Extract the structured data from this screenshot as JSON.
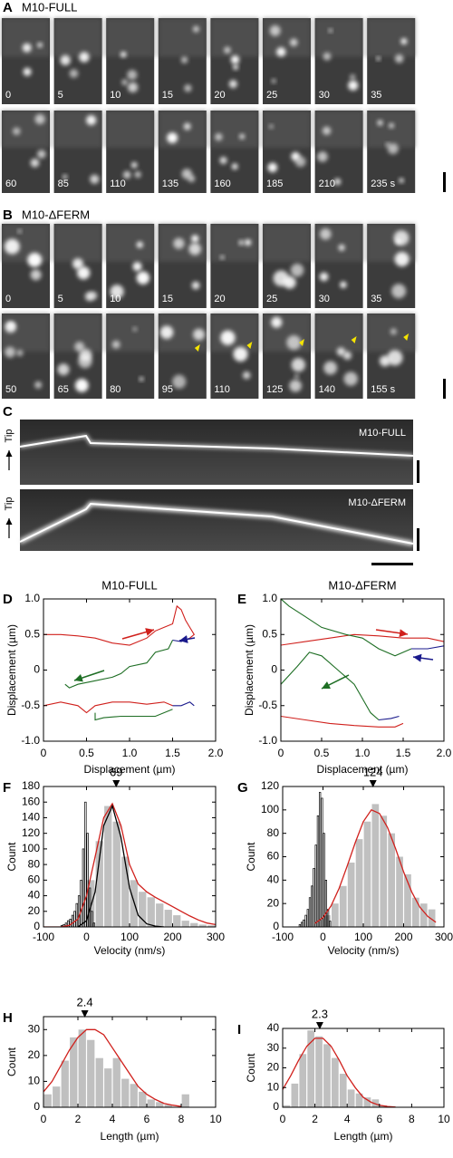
{
  "panel_a": {
    "label": "A",
    "title": "M10-FULL",
    "rows": [
      [
        "0",
        "5",
        "10",
        "15",
        "20",
        "25",
        "30",
        "35"
      ],
      [
        "60",
        "85",
        "110",
        "135",
        "160",
        "185",
        "210",
        "235 s"
      ]
    ]
  },
  "panel_b": {
    "label": "B",
    "title": "M10-ΔFERM",
    "rows": [
      [
        "0",
        "5",
        "10",
        "15",
        "20",
        "25",
        "30",
        "35"
      ],
      [
        "50",
        "65",
        "80",
        "95",
        "110",
        "125",
        "140",
        "155 s"
      ]
    ]
  },
  "panel_c": {
    "label": "C",
    "kymographs": [
      {
        "axis_label": "Tip",
        "title": "M10-FULL"
      },
      {
        "axis_label": "Tip",
        "title": "M10-ΔFERM"
      }
    ]
  },
  "chart_data": [
    {
      "type": "line",
      "label": "D",
      "title": "M10-FULL",
      "xlabel": "Displacement (µm)",
      "ylabel": "Displacement (µm)",
      "xlim": [
        0,
        2
      ],
      "ylim": [
        -1,
        1
      ],
      "xticks": [
        0,
        0.5,
        {
          "value": 1,
          "label": "1.0"
        },
        1.5,
        {
          "value": 2,
          "label": "2.0"
        }
      ],
      "yticks": [
        {
          "value": -1,
          "label": "-1.0"
        },
        -0.5,
        0,
        0.5,
        {
          "value": 1,
          "label": "1.0"
        }
      ],
      "series": [
        {
          "color": "#d0201c",
          "x": [
            0,
            0.2,
            0.4,
            0.6,
            0.8,
            1.0,
            1.1,
            1.2,
            1.3,
            1.4,
            1.5,
            1.55,
            1.6,
            1.65,
            1.7,
            1.75,
            1.7
          ],
          "values": [
            0.5,
            0.5,
            0.48,
            0.45,
            0.38,
            0.35,
            0.4,
            0.45,
            0.55,
            0.6,
            0.65,
            0.9,
            0.85,
            0.7,
            0.6,
            0.5,
            0.45
          ]
        },
        {
          "color": "#1a1a8c",
          "x": [
            1.7,
            1.6,
            1.5
          ],
          "values": [
            0.45,
            0.4,
            0.42
          ]
        },
        {
          "color": "#1e6e24",
          "x": [
            1.5,
            1.45,
            1.3,
            1.2,
            1.0,
            0.9,
            0.8,
            0.6,
            0.4,
            0.3,
            0.25
          ],
          "values": [
            0.42,
            0.3,
            0.25,
            0.1,
            0.05,
            -0.05,
            -0.1,
            -0.15,
            -0.2,
            -0.25,
            -0.2
          ]
        },
        {
          "color": "#d0201c",
          "x": [
            0,
            0.2,
            0.4,
            0.5,
            0.6,
            0.8,
            1.0,
            1.2,
            1.4,
            1.5
          ],
          "values": [
            -0.5,
            -0.45,
            -0.5,
            -0.6,
            -0.5,
            -0.45,
            -0.45,
            -0.48,
            -0.45,
            -0.5
          ]
        },
        {
          "color": "#1a1a8c",
          "x": [
            1.5,
            1.6,
            1.7,
            1.75
          ],
          "values": [
            -0.5,
            -0.5,
            -0.45,
            -0.5
          ]
        },
        {
          "color": "#1e6e24",
          "x": [
            1.5,
            1.3,
            1.1,
            0.9,
            0.7,
            0.6,
            0.6
          ],
          "values": [
            -0.55,
            -0.65,
            -0.65,
            -0.65,
            -0.67,
            -0.7,
            -0.6
          ]
        }
      ]
    },
    {
      "type": "line",
      "label": "E",
      "title": "M10-ΔFERM",
      "xlabel": "Displacement (µm)",
      "ylabel": "Displacement (µm)",
      "xlim": [
        0,
        2
      ],
      "ylim": [
        -1,
        1
      ],
      "xticks": [
        0,
        0.5,
        {
          "value": 1,
          "label": "1.0"
        },
        1.5,
        {
          "value": 2,
          "label": "2.0"
        }
      ],
      "yticks": [
        {
          "value": -1,
          "label": "-1.0"
        },
        -0.5,
        0,
        0.5,
        {
          "value": 1,
          "label": "1.0"
        }
      ],
      "series": [
        {
          "color": "#d0201c",
          "x": [
            0,
            0.3,
            0.6,
            0.9,
            1.2,
            1.5,
            1.8,
            2.0,
            2.05
          ],
          "values": [
            0.35,
            0.4,
            0.45,
            0.5,
            0.48,
            0.45,
            0.45,
            0.4,
            0.35
          ]
        },
        {
          "color": "#1a1a8c",
          "x": [
            2.05,
            1.8,
            1.6
          ],
          "values": [
            0.35,
            0.3,
            0.3
          ]
        },
        {
          "color": "#1e6e24",
          "x": [
            1.6,
            1.4,
            1.2,
            1.0,
            0.8,
            0.5,
            0.3,
            0.1,
            0
          ],
          "values": [
            0.3,
            0.2,
            0.3,
            0.45,
            0.5,
            0.6,
            0.75,
            0.9,
            1.0
          ]
        },
        {
          "color": "#1e6e24",
          "x": [
            0,
            0.2,
            0.35,
            0.5,
            0.7,
            0.9,
            1.0,
            1.1,
            1.2
          ],
          "values": [
            -0.2,
            0.05,
            0.25,
            0.2,
            0.0,
            -0.2,
            -0.4,
            -0.6,
            -0.7
          ]
        },
        {
          "color": "#1a1a8c",
          "x": [
            1.2,
            1.35,
            1.45
          ],
          "values": [
            -0.7,
            -0.68,
            -0.65
          ]
        },
        {
          "color": "#d0201c",
          "x": [
            0,
            0.3,
            0.6,
            0.9,
            1.2,
            1.4,
            1.5
          ],
          "values": [
            -0.65,
            -0.7,
            -0.75,
            -0.78,
            -0.8,
            -0.8,
            -0.75
          ]
        }
      ]
    },
    {
      "type": "histogram",
      "label": "F",
      "xlabel": "Velocity (nm/s)",
      "ylabel": "Count",
      "xlim": [
        -100,
        300
      ],
      "ylim": [
        0,
        180
      ],
      "xticks": [
        -100,
        0,
        100,
        200,
        300
      ],
      "yticks": [
        0,
        20,
        40,
        60,
        80,
        100,
        120,
        140,
        160,
        180
      ],
      "histograms": [
        {
          "color": "#c0c0c0",
          "bins": [
            0,
            20,
            40,
            60,
            80,
            100,
            120,
            140,
            160,
            180,
            200,
            220,
            240,
            260,
            280,
            300
          ],
          "counts": [
            60,
            110,
            155,
            135,
            90,
            60,
            45,
            38,
            30,
            22,
            15,
            8,
            5,
            3,
            2
          ]
        },
        {
          "color": "#000000",
          "bins": [
            -60,
            -55,
            -50,
            -45,
            -40,
            -35,
            -30,
            -25,
            -20,
            -15,
            -10,
            -5,
            0,
            5,
            10,
            15,
            20
          ],
          "counts": [
            2,
            3,
            5,
            8,
            10,
            15,
            20,
            30,
            40,
            60,
            100,
            160,
            120,
            50,
            20,
            5
          ]
        }
      ],
      "curves": [
        {
          "color": "#d0201c",
          "x": [
            -100,
            -80,
            -60,
            -40,
            -20,
            0,
            20,
            40,
            60,
            80,
            100,
            120,
            140,
            160,
            180,
            200,
            220,
            240,
            260,
            280,
            300
          ],
          "values": [
            0,
            0,
            0,
            2,
            10,
            40,
            90,
            140,
            158,
            130,
            80,
            55,
            45,
            38,
            32,
            26,
            20,
            14,
            9,
            5,
            3
          ]
        },
        {
          "color": "#000000",
          "x": [
            -20,
            0,
            20,
            40,
            60,
            80,
            100,
            120,
            140,
            160,
            180
          ],
          "values": [
            0,
            8,
            45,
            130,
            155,
            115,
            50,
            15,
            4,
            1,
            0
          ]
        }
      ],
      "annotations": [
        {
          "text": "69",
          "x": 69
        }
      ]
    },
    {
      "type": "histogram",
      "label": "G",
      "xlabel": "Velocity (nm/s)",
      "ylabel": "Count",
      "xlim": [
        -100,
        300
      ],
      "ylim": [
        0,
        120
      ],
      "xticks": [
        -100,
        0,
        100,
        200,
        300
      ],
      "yticks": [
        0,
        20,
        40,
        60,
        80,
        100,
        120
      ],
      "histograms": [
        {
          "color": "#c0c0c0",
          "bins": [
            0,
            20,
            40,
            60,
            80,
            100,
            120,
            140,
            160,
            180,
            200,
            220,
            240,
            260,
            280
          ],
          "counts": [
            10,
            20,
            35,
            55,
            75,
            90,
            105,
            95,
            80,
            60,
            45,
            25,
            20,
            15
          ]
        },
        {
          "color": "#000000",
          "bins": [
            -60,
            -55,
            -50,
            -45,
            -40,
            -35,
            -30,
            -25,
            -20,
            -15,
            -10,
            -5,
            0,
            5,
            10,
            15,
            20
          ],
          "counts": [
            2,
            4,
            6,
            10,
            15,
            25,
            35,
            50,
            70,
            95,
            115,
            110,
            80,
            40,
            15,
            5
          ]
        }
      ],
      "curves": [
        {
          "color": "#d0201c",
          "x": [
            -20,
            0,
            20,
            40,
            60,
            80,
            100,
            120,
            140,
            160,
            180,
            200,
            220,
            240,
            260,
            280
          ],
          "values": [
            3,
            8,
            18,
            33,
            52,
            72,
            90,
            100,
            97,
            85,
            67,
            47,
            30,
            17,
            9,
            4
          ]
        }
      ],
      "annotations": [
        {
          "text": "124",
          "x": 124
        }
      ]
    },
    {
      "type": "histogram",
      "label": "H",
      "xlabel": "Length (µm)",
      "ylabel": "Count",
      "xlim": [
        0,
        10
      ],
      "ylim": [
        0,
        35
      ],
      "xticks": [
        0,
        2,
        4,
        6,
        8,
        10
      ],
      "yticks": [
        0,
        10,
        20,
        30
      ],
      "histograms": [
        {
          "color": "#c0c0c0",
          "bins": [
            0,
            0.5,
            1,
            1.5,
            2,
            2.5,
            3,
            3.5,
            4,
            4.5,
            5,
            5.5,
            6,
            6.5,
            7,
            7.5,
            8,
            8.5
          ],
          "counts": [
            5,
            8,
            18,
            27,
            30,
            26,
            19,
            15,
            19,
            11,
            9,
            6,
            3,
            2,
            1,
            0,
            5
          ]
        }
      ],
      "curves": [
        {
          "color": "#d0201c",
          "x": [
            0,
            0.5,
            1,
            1.5,
            2,
            2.5,
            3,
            3.5,
            4,
            4.5,
            5,
            5.5,
            6,
            6.5,
            7,
            7.5,
            8
          ],
          "values": [
            6,
            10,
            16,
            22,
            27,
            30,
            30,
            28,
            23,
            18,
            13,
            8,
            5,
            3,
            1.5,
            0.8,
            0.3
          ]
        }
      ],
      "annotations": [
        {
          "text": "2.4",
          "x": 2.4
        }
      ]
    },
    {
      "type": "histogram",
      "label": "I",
      "xlabel": "Length (µm)",
      "ylabel": "Count",
      "xlim": [
        0,
        10
      ],
      "ylim": [
        0,
        40
      ],
      "xticks": [
        0,
        2,
        4,
        6,
        8,
        10
      ],
      "yticks": [
        0,
        10,
        20,
        30,
        40
      ],
      "histograms": [
        {
          "color": "#c0c0c0",
          "bins": [
            0,
            0.5,
            1,
            1.5,
            2,
            2.5,
            3,
            3.5,
            4,
            4.5,
            5,
            5.5,
            6,
            6.5
          ],
          "counts": [
            1,
            12,
            27,
            39,
            36,
            32,
            25,
            17,
            9,
            7,
            5,
            4,
            1
          ]
        }
      ],
      "curves": [
        {
          "color": "#d0201c",
          "x": [
            0,
            0.5,
            1,
            1.5,
            2,
            2.5,
            3,
            3.5,
            4,
            4.5,
            5,
            5.5,
            6,
            6.5,
            7
          ],
          "values": [
            9,
            16,
            24,
            31,
            35,
            35,
            31,
            24,
            16,
            10,
            5,
            2.5,
            1,
            0.4,
            0.1
          ]
        }
      ],
      "annotations": [
        {
          "text": "2.3",
          "x": 2.3
        }
      ]
    }
  ]
}
